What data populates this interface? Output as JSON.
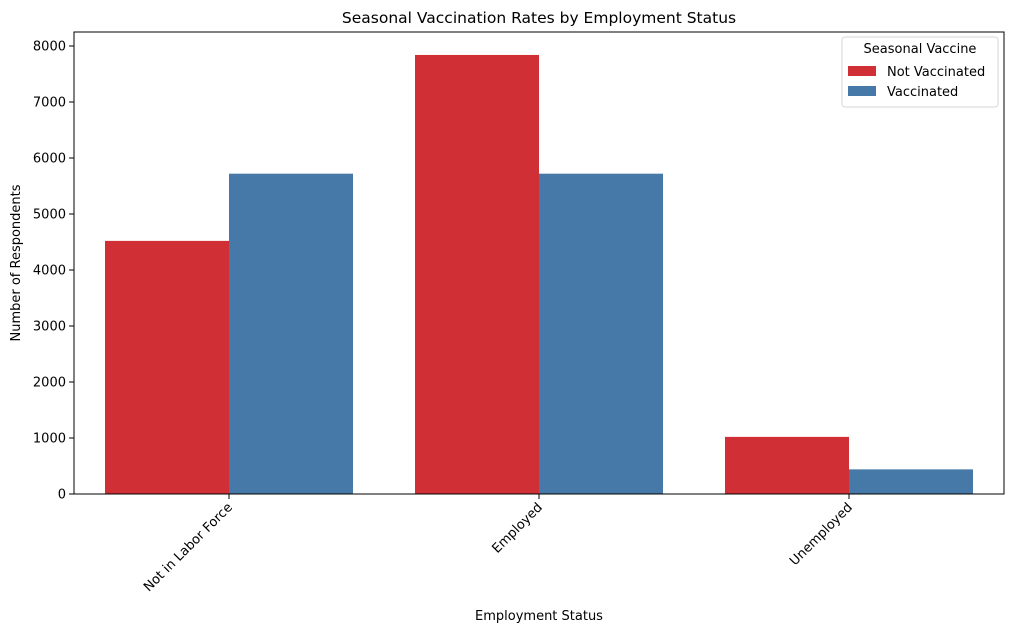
{
  "chart_data": {
    "type": "bar",
    "title": "Seasonal Vaccination Rates by Employment Status",
    "xlabel": "Employment Status",
    "ylabel": "Number of Respondents",
    "categories": [
      "Not in Labor Force",
      "Employed",
      "Unemployed"
    ],
    "series": [
      {
        "name": "Not Vaccinated",
        "color": "#d03035",
        "values": [
          4520,
          7840,
          1020
        ]
      },
      {
        "name": "Vaccinated",
        "color": "#4679a8",
        "values": [
          5720,
          5720,
          440
        ]
      }
    ],
    "ylim": [
      0,
      8250
    ],
    "yticks": [
      0,
      1000,
      2000,
      3000,
      4000,
      5000,
      6000,
      7000,
      8000
    ],
    "legend": {
      "title": "Seasonal Vaccine",
      "position": "top-right"
    },
    "grid": false
  }
}
